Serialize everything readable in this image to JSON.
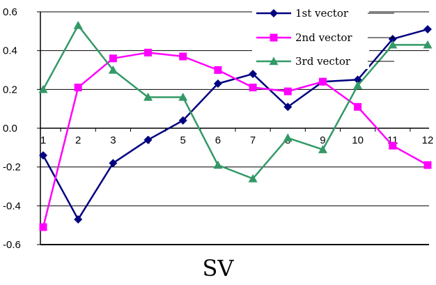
{
  "chart_data": {
    "type": "line",
    "x": [
      1,
      2,
      3,
      4,
      5,
      6,
      7,
      8,
      9,
      10,
      11,
      12
    ],
    "x_tick_labels": [
      "1",
      "2",
      "3",
      "4",
      "5",
      "6",
      "7",
      "8",
      "9",
      "10",
      "11",
      "12"
    ],
    "series": [
      {
        "name": "1st vector",
        "color": "#000080",
        "marker": "diamond",
        "values": [
          -0.14,
          -0.47,
          -0.18,
          -0.06,
          0.04,
          0.23,
          0.28,
          0.11,
          0.24,
          0.25,
          0.46,
          0.51
        ]
      },
      {
        "name": "2nd vector",
        "color": "#FF00FF",
        "marker": "square",
        "values": [
          -0.51,
          0.21,
          0.36,
          0.39,
          0.37,
          0.3,
          0.21,
          0.19,
          0.24,
          0.11,
          -0.09,
          -0.19
        ]
      },
      {
        "name": "3rd vector",
        "color": "#339966",
        "marker": "triangle",
        "values": [
          0.2,
          0.53,
          0.3,
          0.16,
          0.16,
          -0.19,
          -0.26,
          -0.05,
          -0.11,
          0.22,
          0.43,
          0.43
        ]
      }
    ],
    "y_ticks": [
      0.6,
      0.4,
      0.2,
      0.0,
      -0.2,
      -0.4,
      -0.6
    ],
    "y_tick_labels": [
      "0.6",
      "0.4",
      "0.2",
      "0.0",
      "-0.2",
      "-0.4",
      "-0.6"
    ],
    "ylim": [
      -0.6,
      0.6
    ],
    "xlabel": "SV",
    "ylabel": "",
    "title": "",
    "grid": "horizontal",
    "legend_position": "top-right"
  }
}
